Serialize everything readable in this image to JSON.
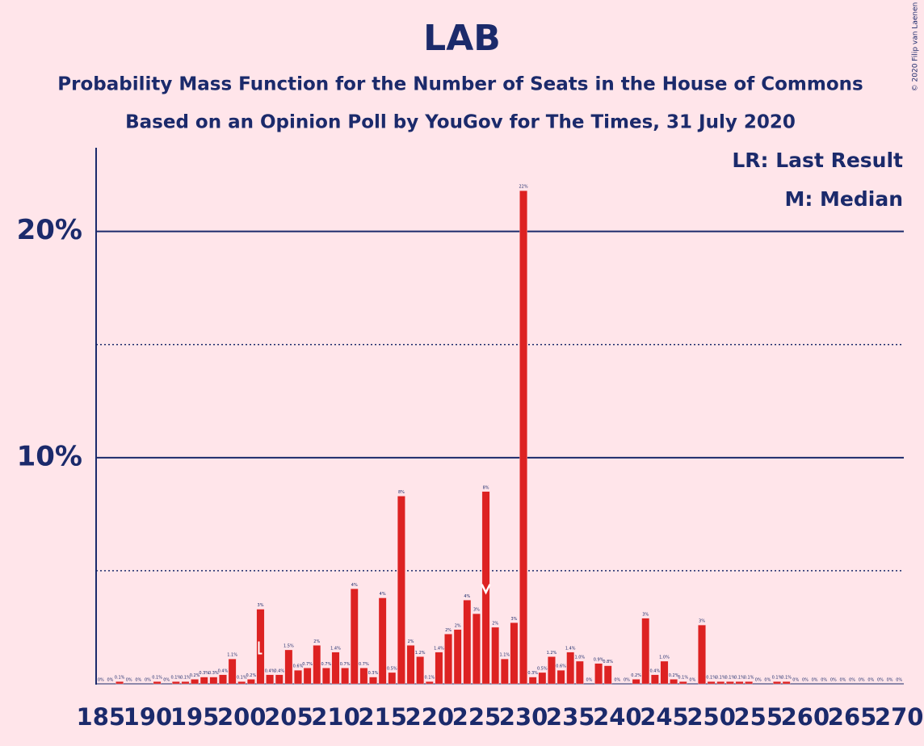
{
  "chart_data": {
    "type": "bar",
    "title": "LAB",
    "subtitle": [
      "Probability Mass Function for the Number of Seats in the House of Commons",
      "Based on an Opinion Poll by YouGov for The Times, 31 July 2020"
    ],
    "credit": "© 2020 Filip van Laenen",
    "categories": [
      185,
      186,
      187,
      188,
      189,
      190,
      191,
      192,
      193,
      194,
      195,
      196,
      197,
      198,
      199,
      200,
      201,
      202,
      203,
      204,
      205,
      206,
      207,
      208,
      209,
      210,
      211,
      212,
      213,
      214,
      215,
      216,
      217,
      218,
      219,
      220,
      221,
      222,
      223,
      224,
      225,
      226,
      227,
      228,
      229,
      230,
      231,
      232,
      233,
      234,
      235,
      236,
      237,
      238,
      239,
      240,
      241,
      242,
      243,
      244,
      245,
      246,
      247,
      248,
      249,
      250,
      251,
      252,
      253,
      254,
      255,
      256,
      257,
      258,
      259,
      260,
      261,
      262,
      263,
      264,
      265,
      266,
      267,
      268,
      269,
      270
    ],
    "values": [
      0,
      0,
      0.1,
      0,
      0,
      0,
      0.1,
      0,
      0.1,
      0.1,
      0.2,
      0.3,
      0.3,
      0.4,
      1.1,
      0.1,
      0.2,
      3.3,
      0.4,
      0.4,
      1.5,
      0.6,
      0.7,
      1.7,
      0.7,
      1.4,
      0.7,
      4.2,
      0.7,
      0.3,
      3.8,
      0.5,
      8.3,
      1.7,
      1.2,
      0.1,
      1.4,
      2.2,
      2.4,
      3.7,
      3.1,
      8.5,
      2.5,
      1.1,
      2.7,
      21.8,
      0.3,
      0.5,
      1.2,
      0.6,
      1.4,
      1.0,
      0,
      0.9,
      0.8,
      0,
      0,
      0.2,
      2.9,
      0.4,
      1.0,
      0.2,
      0.1,
      0,
      2.6,
      0.1,
      0.1,
      0.1,
      0.1,
      0.1,
      0,
      0,
      0.1,
      0.1,
      0,
      0,
      0,
      0,
      0,
      0,
      0,
      0,
      0,
      0,
      0,
      0
    ],
    "value_labels": [
      "0%",
      "0%",
      "0.1%",
      "0%",
      "0%",
      "0%",
      "0.1%",
      "0%",
      "0.1%",
      "0.1%",
      "0.2%",
      "0.3%",
      "0.3%",
      "0.4%",
      "1.1%",
      "0.1%",
      "0.2%",
      "3%",
      "0.4%",
      "0.4%",
      "1.5%",
      "0.6%",
      "0.7%",
      "2%",
      "0.7%",
      "1.4%",
      "0.7%",
      "4%",
      "0.7%",
      "0.3%",
      "4%",
      "0.5%",
      "8%",
      "2%",
      "1.2%",
      "0.1%",
      "1.4%",
      "2%",
      "2%",
      "4%",
      "3%",
      "8%",
      "2%",
      "1.1%",
      "3%",
      "22%",
      "0.3%",
      "0.5%",
      "1.2%",
      "0.6%",
      "1.4%",
      "1.0%",
      "0%",
      "0.9%",
      "0.8%",
      "0%",
      "0%",
      "0.2%",
      "3%",
      "0.4%",
      "1.0%",
      "0.2%",
      "0.1%",
      "0%",
      "3%",
      "0.1%",
      "0.1%",
      "0.1%",
      "0.1%",
      "0.1%",
      "0%",
      "0%",
      "0.1%",
      "0.1%",
      "0%",
      "0%",
      "0%",
      "0%",
      "0%",
      "0%",
      "0%",
      "0%",
      "0%",
      "0%",
      "0%",
      "0%"
    ],
    "color": "#dd2222",
    "xlim": [
      184.5,
      270.5
    ],
    "xticks": [
      185,
      190,
      195,
      200,
      205,
      210,
      215,
      220,
      225,
      230,
      235,
      240,
      245,
      250,
      255,
      260,
      265,
      270
    ],
    "ylim": [
      0,
      23.7
    ],
    "yticks": [
      {
        "value": 10,
        "label": "10%"
      },
      {
        "value": 20,
        "label": "20%"
      }
    ],
    "minor_yticks": [
      5,
      15
    ],
    "grid": true,
    "markers": [
      {
        "label": "LR: Last Result",
        "x": 202
      },
      {
        "label": "M: Median",
        "x": 226
      }
    ]
  }
}
